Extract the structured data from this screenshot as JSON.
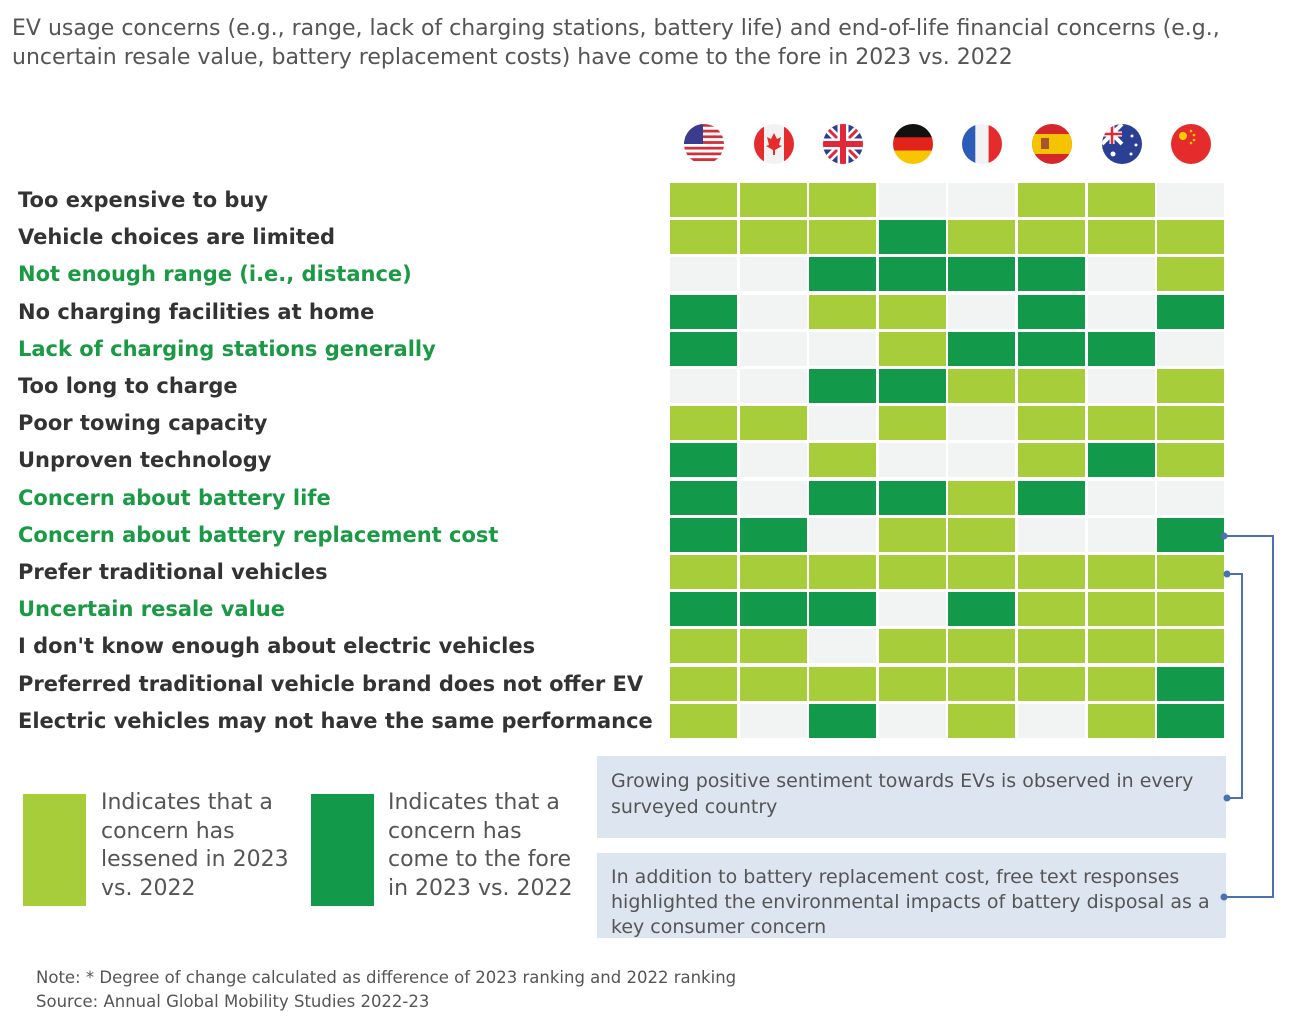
{
  "title": "EV usage concerns (e.g., range, lack of charging stations, battery life) and end-of-life financial concerns (e.g., uncertain resale value, battery replacement costs) have come to the fore in 2023 vs. 2022",
  "colors": {
    "lessened": "#a8cd3a",
    "fore": "#12994a",
    "none": "#f2f4f3",
    "highlight_label": "#1a9a45",
    "callout_bg": "#dde5f0",
    "bracket": "#4a72b0"
  },
  "chart_data": {
    "type": "heatmap",
    "columns": [
      "us-flag",
      "canada-flag",
      "uk-flag",
      "germany-flag",
      "france-flag",
      "spain-flag",
      "australia-flag",
      "china-flag"
    ],
    "rows": [
      {
        "label": "Too expensive to buy",
        "highlight": false,
        "values": [
          "lessened",
          "lessened",
          "lessened",
          "none",
          "none",
          "lessened",
          "lessened",
          "none"
        ]
      },
      {
        "label": "Vehicle choices are limited",
        "highlight": false,
        "values": [
          "lessened",
          "lessened",
          "lessened",
          "fore",
          "lessened",
          "lessened",
          "lessened",
          "lessened"
        ]
      },
      {
        "label": "Not enough range (i.e., distance)",
        "highlight": true,
        "values": [
          "none",
          "none",
          "fore",
          "fore",
          "fore",
          "fore",
          "none",
          "lessened"
        ]
      },
      {
        "label": "No charging facilities at home",
        "highlight": false,
        "values": [
          "fore",
          "none",
          "lessened",
          "lessened",
          "none",
          "fore",
          "none",
          "fore"
        ]
      },
      {
        "label": "Lack of charging stations generally",
        "highlight": true,
        "values": [
          "fore",
          "none",
          "none",
          "lessened",
          "fore",
          "fore",
          "fore",
          "none"
        ]
      },
      {
        "label": "Too long to charge",
        "highlight": false,
        "values": [
          "none",
          "none",
          "fore",
          "fore",
          "lessened",
          "lessened",
          "none",
          "lessened"
        ]
      },
      {
        "label": "Poor towing capacity",
        "highlight": false,
        "values": [
          "lessened",
          "lessened",
          "none",
          "lessened",
          "none",
          "lessened",
          "lessened",
          "lessened"
        ]
      },
      {
        "label": "Unproven technology",
        "highlight": false,
        "values": [
          "fore",
          "none",
          "lessened",
          "none",
          "none",
          "lessened",
          "fore",
          "lessened"
        ]
      },
      {
        "label": "Concern about battery life",
        "highlight": true,
        "values": [
          "fore",
          "none",
          "fore",
          "fore",
          "lessened",
          "fore",
          "none",
          "none"
        ]
      },
      {
        "label": "Concern about battery replacement cost",
        "highlight": true,
        "values": [
          "fore",
          "fore",
          "none",
          "lessened",
          "lessened",
          "none",
          "none",
          "fore"
        ]
      },
      {
        "label": "Prefer traditional vehicles",
        "highlight": false,
        "values": [
          "lessened",
          "lessened",
          "lessened",
          "lessened",
          "lessened",
          "lessened",
          "lessened",
          "lessened"
        ]
      },
      {
        "label": "Uncertain resale value",
        "highlight": true,
        "values": [
          "fore",
          "fore",
          "fore",
          "none",
          "fore",
          "lessened",
          "lessened",
          "lessened"
        ]
      },
      {
        "label": "I don't know enough about electric vehicles",
        "highlight": false,
        "values": [
          "lessened",
          "lessened",
          "none",
          "lessened",
          "lessened",
          "lessened",
          "lessened",
          "lessened"
        ]
      },
      {
        "label": "Preferred traditional vehicle brand does not offer EV",
        "highlight": false,
        "values": [
          "lessened",
          "lessened",
          "lessened",
          "lessened",
          "lessened",
          "lessened",
          "lessened",
          "fore"
        ]
      },
      {
        "label": "Electric vehicles may not have the same performance",
        "highlight": false,
        "values": [
          "lessened",
          "none",
          "fore",
          "none",
          "lessened",
          "none",
          "lessened",
          "fore"
        ]
      }
    ],
    "legend": [
      {
        "key": "lessened",
        "text": "Indicates that a concern has lessened in 2023 vs. 2022"
      },
      {
        "key": "fore",
        "text": "Indicates that a concern has come to the fore in 2023 vs. 2022"
      }
    ]
  },
  "callouts": [
    "Growing positive sentiment towards EVs is observed in every surveyed country",
    "In addition to battery replacement cost, free text responses highlighted the environmental impacts of battery disposal as a key consumer concern"
  ],
  "note": "Note: * Degree of change calculated as difference of 2023 ranking and 2022 ranking",
  "source": "Source: Annual Global Mobility Studies 2022-23"
}
